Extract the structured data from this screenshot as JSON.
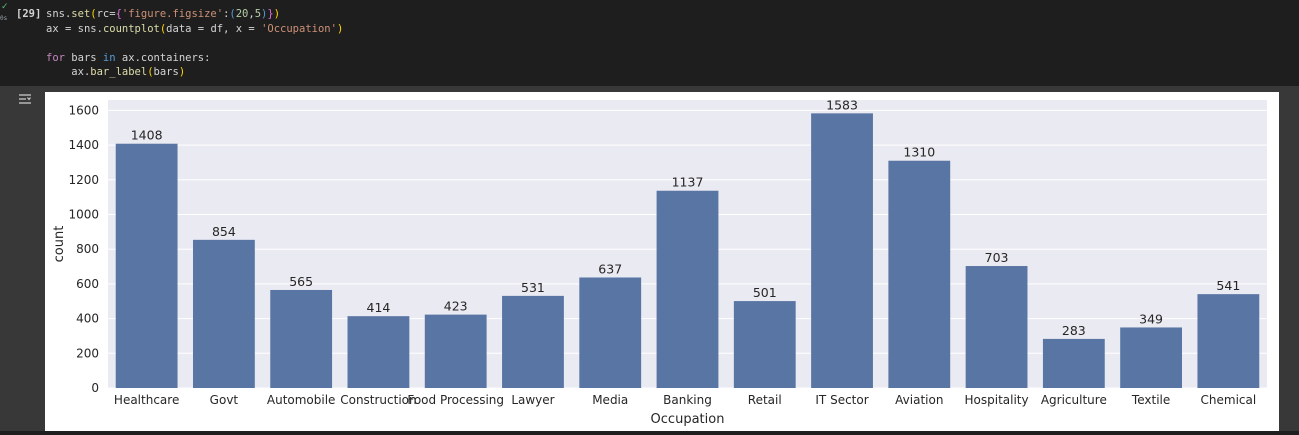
{
  "cell": {
    "exec_count": "[29]",
    "status_icon": "check-icon",
    "status_time": "0s",
    "code_lines": [
      "sns.set(rc={'figure.figsize':(20,5)})",
      "ax = sns.countplot(data = df, x = 'Occupation')",
      "",
      "for bars in ax.containers:",
      "    ax.bar_label(bars)"
    ]
  },
  "output": {
    "toggle_icon": "output-toggle-icon"
  },
  "colors": {
    "bar": "#5975a4",
    "plot_bg": "#eaeaf2",
    "grid": "#ffffff"
  },
  "chart_data": {
    "type": "bar",
    "categories": [
      "Healthcare",
      "Govt",
      "Automobile",
      "Construction",
      "Food Processing",
      "Lawyer",
      "Media",
      "Banking",
      "Retail",
      "IT Sector",
      "Aviation",
      "Hospitality",
      "Agriculture",
      "Textile",
      "Chemical"
    ],
    "values": [
      1408,
      854,
      565,
      414,
      423,
      531,
      637,
      1137,
      501,
      1583,
      1310,
      703,
      283,
      349,
      541
    ],
    "xlabel": "Occupation",
    "ylabel": "count",
    "ylim": [
      0,
      1660
    ],
    "yticks": [
      0,
      200,
      400,
      600,
      800,
      1000,
      1200,
      1400,
      1600
    ],
    "grid": true,
    "bar_labels": true
  }
}
